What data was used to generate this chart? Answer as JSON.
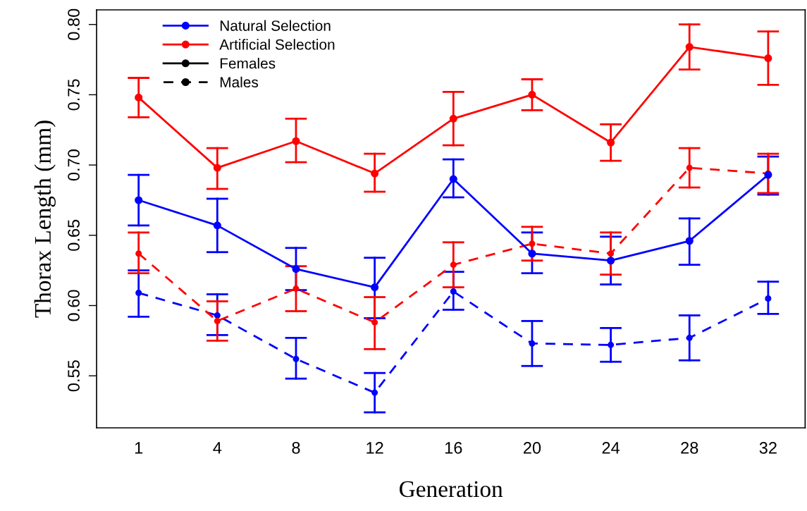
{
  "chart_data": {
    "type": "line",
    "xlabel": "Generation",
    "ylabel": "Thorax Length (mm)",
    "categories": [
      "1",
      "4",
      "8",
      "12",
      "16",
      "20",
      "24",
      "28",
      "32"
    ],
    "ylim": [
      0.513,
      0.8104
    ],
    "yticks": [
      {
        "value": 0.55,
        "label": "0.55"
      },
      {
        "value": 0.6,
        "label": "0.60"
      },
      {
        "value": 0.65,
        "label": "0.65"
      },
      {
        "value": 0.7,
        "label": "0.70"
      },
      {
        "value": 0.75,
        "label": "0.75"
      },
      {
        "value": 0.8,
        "label": "0.80"
      }
    ],
    "grid": false,
    "legend": "top left",
    "marker": "circle",
    "annotations": [
      "Females",
      "Males"
    ],
    "series": [
      {
        "name": "Natural Selection",
        "color": "#0000ff",
        "line_style": "solid",
        "values": [
          0.675,
          0.657,
          0.626,
          0.613,
          0.69,
          0.637,
          0.632,
          0.646,
          0.693
        ],
        "errors": [
          [
            0.657,
            0.693
          ],
          [
            0.638,
            0.676
          ],
          [
            0.611,
            0.641
          ],
          [
            0.591,
            0.634
          ],
          [
            0.677,
            0.704
          ],
          [
            0.623,
            0.652
          ],
          [
            0.615,
            0.649
          ],
          [
            0.629,
            0.662
          ],
          [
            0.679,
            0.706
          ]
        ]
      },
      {
        "name": "Artificial Selection",
        "color": "#ff0000",
        "line_style": "solid",
        "values": [
          0.748,
          0.698,
          0.717,
          0.694,
          0.733,
          0.75,
          0.716,
          0.784,
          0.776
        ],
        "errors": [
          [
            0.734,
            0.762
          ],
          [
            0.683,
            0.712
          ],
          [
            0.702,
            0.733
          ],
          [
            0.681,
            0.708
          ],
          [
            0.714,
            0.752
          ],
          [
            0.739,
            0.761
          ],
          [
            0.703,
            0.729
          ],
          [
            0.768,
            0.8
          ],
          [
            0.757,
            0.795
          ]
        ]
      },
      {
        "name": null,
        "color": "#0000ff",
        "line_style": "dashed",
        "values": [
          0.609,
          0.593,
          0.562,
          0.538,
          0.61,
          0.573,
          0.572,
          0.577,
          0.605
        ],
        "errors": [
          [
            0.592,
            0.625
          ],
          [
            0.579,
            0.608
          ],
          [
            0.548,
            0.577
          ],
          [
            0.524,
            0.552
          ],
          [
            0.597,
            0.624
          ],
          [
            0.557,
            0.589
          ],
          [
            0.56,
            0.584
          ],
          [
            0.561,
            0.593
          ],
          [
            0.594,
            0.617
          ]
        ]
      },
      {
        "name": null,
        "color": "#ff0000",
        "line_style": "dashed",
        "values": [
          0.637,
          0.589,
          0.612,
          0.588,
          0.629,
          0.644,
          0.637,
          0.698,
          0.694
        ],
        "errors": [
          [
            0.623,
            0.652
          ],
          [
            0.575,
            0.603
          ],
          [
            0.596,
            0.628
          ],
          [
            0.569,
            0.606
          ],
          [
            0.613,
            0.645
          ],
          [
            0.632,
            0.656
          ],
          [
            0.622,
            0.652
          ],
          [
            0.684,
            0.712
          ],
          [
            0.68,
            0.708
          ]
        ]
      }
    ]
  }
}
